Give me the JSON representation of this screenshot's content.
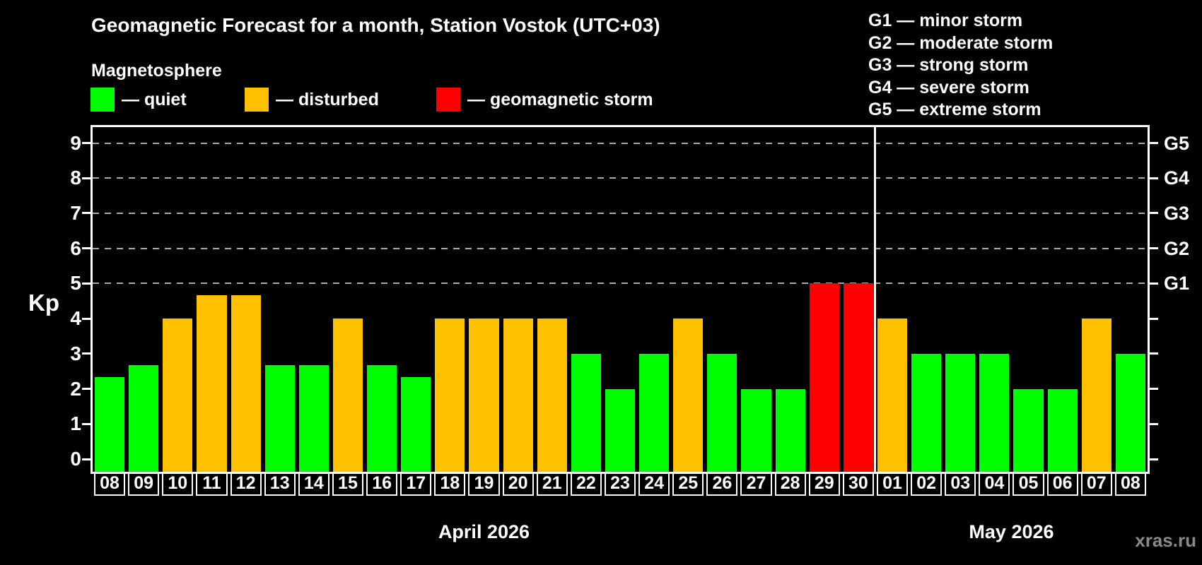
{
  "subtitle": "Magnetosphere",
  "watermark": "xras.ru",
  "legend": [
    {
      "text": "— quiet",
      "status": "quiet"
    },
    {
      "text": "— disturbed",
      "status": "disturbed"
    },
    {
      "text": "— geomagnetic storm",
      "status": "storm"
    }
  ],
  "storm_scale": [
    "G1 — minor storm",
    "G2 — moderate storm",
    "G3 — strong storm",
    "G4 — severe storm",
    "G5 — extreme storm"
  ],
  "chart_data": {
    "type": "bar",
    "title": "Geomagnetic Forecast for a month, Station Vostok (UTC+03)",
    "ylabel": "Kp",
    "xlabel": "",
    "ylim": [
      0,
      9
    ],
    "yticks": [
      0,
      1,
      2,
      3,
      4,
      5,
      6,
      7,
      8,
      9
    ],
    "gridlines_at": [
      5,
      6,
      7,
      8,
      9
    ],
    "grid_style": "dashed",
    "right_axis": {
      "5": "G1",
      "6": "G2",
      "7": "G3",
      "8": "G4",
      "9": "G5"
    },
    "colors": {
      "quiet": "#00ff00",
      "disturbed": "#ffc000",
      "storm": "#ff0000",
      "grid": "#aaaaaa",
      "axis": "#ffffff"
    },
    "series": [
      {
        "month": "April 2026",
        "categories": [
          "08",
          "09",
          "10",
          "11",
          "12",
          "13",
          "14",
          "15",
          "16",
          "17",
          "18",
          "19",
          "20",
          "21",
          "22",
          "23",
          "24",
          "25",
          "26",
          "27",
          "28",
          "29",
          "30"
        ],
        "values": [
          2.33,
          2.67,
          4,
          4.67,
          4.67,
          2.67,
          2.67,
          4,
          2.67,
          2.33,
          4,
          4,
          4,
          4,
          3,
          2,
          3,
          4,
          3,
          2,
          2,
          5,
          5
        ],
        "status": [
          "quiet",
          "quiet",
          "disturbed",
          "disturbed",
          "disturbed",
          "quiet",
          "quiet",
          "disturbed",
          "quiet",
          "quiet",
          "disturbed",
          "disturbed",
          "disturbed",
          "disturbed",
          "quiet",
          "quiet",
          "quiet",
          "disturbed",
          "quiet",
          "quiet",
          "quiet",
          "storm",
          "storm"
        ]
      },
      {
        "month": "May 2026",
        "categories": [
          "01",
          "02",
          "03",
          "04",
          "05",
          "06",
          "07",
          "08"
        ],
        "values": [
          4,
          3,
          3,
          3,
          2,
          2,
          4,
          3
        ],
        "status": [
          "disturbed",
          "quiet",
          "quiet",
          "quiet",
          "quiet",
          "quiet",
          "disturbed",
          "quiet"
        ]
      }
    ]
  }
}
